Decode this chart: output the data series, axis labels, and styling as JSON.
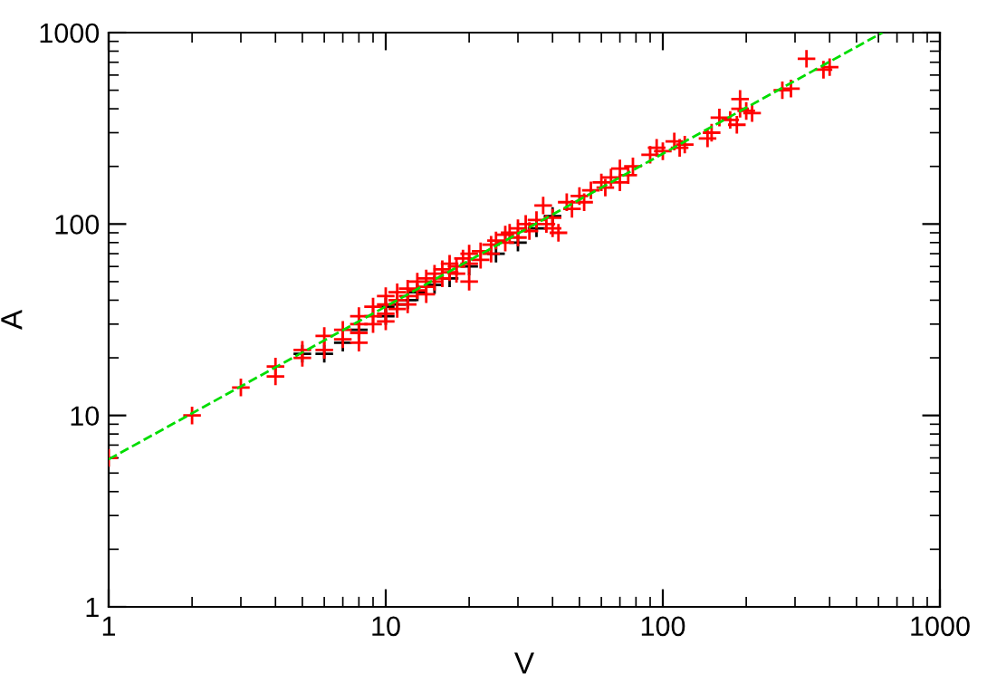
{
  "chart_data": {
    "type": "scatter",
    "xlabel": "V",
    "ylabel": "A",
    "log": "xy",
    "grid": false,
    "xlim": [
      1,
      1000
    ],
    "ylim": [
      1,
      1000
    ],
    "xticks": [
      1,
      10,
      100,
      1000
    ],
    "yticks": [
      1,
      10,
      100,
      1000
    ],
    "series": [
      {
        "color": "#000000",
        "marker": "cross",
        "x": [
          5,
          6,
          7,
          8,
          10,
          10,
          11,
          12,
          13,
          15,
          17,
          20,
          25,
          30,
          35,
          40
        ],
        "values": [
          21,
          21,
          24,
          28,
          33,
          37,
          38,
          40,
          44,
          48,
          52,
          60,
          70,
          80,
          95,
          110
        ]
      },
      {
        "color": "#ff0000",
        "marker": "cross",
        "x": [
          1,
          2,
          3,
          4,
          4,
          5,
          5,
          6,
          6,
          7,
          7,
          8,
          8,
          8,
          8,
          9,
          9,
          9,
          10,
          10,
          10,
          10,
          11,
          11,
          11,
          12,
          12,
          12,
          13,
          13,
          14,
          14,
          14,
          15,
          15,
          16,
          16,
          17,
          17,
          18,
          18,
          19,
          20,
          20,
          20,
          22,
          22,
          24,
          24,
          25,
          27,
          27,
          28,
          30,
          30,
          32,
          33,
          35,
          37,
          38,
          40,
          40,
          42,
          45,
          47,
          50,
          52,
          55,
          60,
          62,
          65,
          70,
          70,
          75,
          78,
          90,
          95,
          100,
          110,
          115,
          120,
          145,
          150,
          160,
          175,
          190,
          190,
          185,
          200,
          210,
          270,
          290,
          330,
          380,
          400
        ],
        "values": [
          6,
          10,
          14,
          18,
          16,
          22,
          20,
          26,
          22,
          28,
          25,
          33,
          30,
          27,
          24,
          37,
          33,
          30,
          42,
          38,
          34,
          31,
          44,
          40,
          36,
          46,
          42,
          38,
          50,
          45,
          52,
          47,
          43,
          55,
          50,
          58,
          52,
          62,
          56,
          60,
          55,
          66,
          70,
          62,
          50,
          72,
          65,
          78,
          70,
          82,
          88,
          80,
          90,
          95,
          85,
          100,
          92,
          105,
          125,
          100,
          108,
          95,
          90,
          130,
          120,
          140,
          130,
          150,
          165,
          155,
          175,
          195,
          165,
          180,
          200,
          230,
          250,
          240,
          270,
          250,
          260,
          280,
          300,
          360,
          350,
          450,
          400,
          330,
          390,
          380,
          500,
          510,
          730,
          640,
          660
        ]
      },
      {
        "type": "line",
        "color": "#00dd00",
        "line_style": "dashed",
        "x": [
          1,
          620
        ],
        "values": [
          5.9,
          1000
        ]
      }
    ]
  }
}
